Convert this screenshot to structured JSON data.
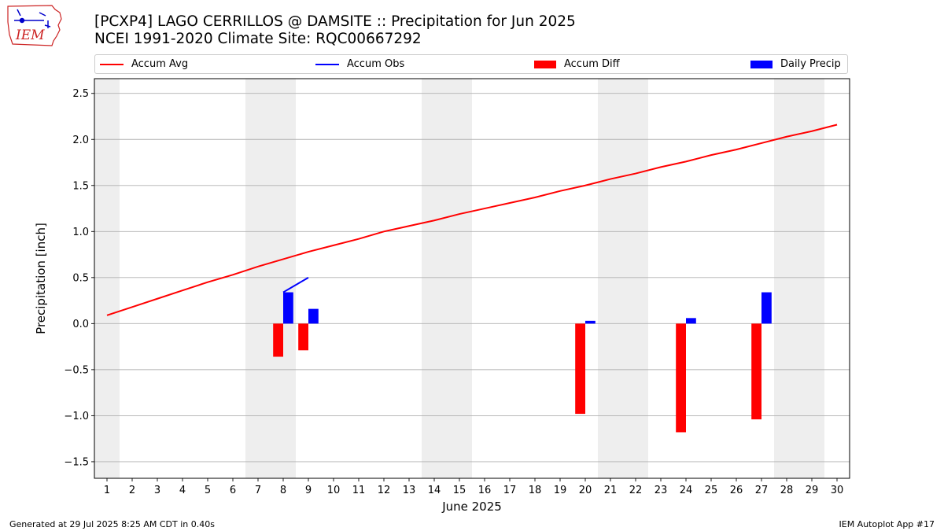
{
  "logo": {
    "text": "IEM"
  },
  "title": {
    "line1": "[PCXP4] LAGO CERRILLOS @ DAMSITE :: Precipitation for Jun 2025",
    "line2": "NCEI 1991-2020 Climate Site: RQC00667292"
  },
  "legend": [
    {
      "label": "Accum Avg",
      "kind": "line",
      "color": "#ff0000"
    },
    {
      "label": "Accum Obs",
      "kind": "line",
      "color": "#0000ff"
    },
    {
      "label": "Accum Diff",
      "kind": "box",
      "color": "#ff0000"
    },
    {
      "label": "Daily Precip",
      "kind": "box",
      "color": "#0000ff"
    }
  ],
  "footer": {
    "left": "Generated at 29 Jul 2025 8:25 AM CDT in 0.40s",
    "right": "IEM Autoplot App #17"
  },
  "chart_data": {
    "type": "bar",
    "title": "[PCXP4] LAGO CERRILLOS @ DAMSITE :: Precipitation for Jun 2025",
    "xlabel": "June 2025",
    "ylabel": "Precipitation [inch]",
    "x": [
      1,
      2,
      3,
      4,
      5,
      6,
      7,
      8,
      9,
      10,
      11,
      12,
      13,
      14,
      15,
      16,
      17,
      18,
      19,
      20,
      21,
      22,
      23,
      24,
      25,
      26,
      27,
      28,
      29,
      30
    ],
    "xlim": [
      0.5,
      30.5
    ],
    "ylim": [
      -1.68,
      2.66
    ],
    "yticks": [
      -1.5,
      -1.0,
      -0.5,
      0.0,
      0.5,
      1.0,
      1.5,
      2.0,
      2.5
    ],
    "ytick_labels": [
      "−1.5",
      "−1.0",
      "−0.5",
      "0.0",
      "0.5",
      "1.0",
      "1.5",
      "2.0",
      "2.5"
    ],
    "grid": "horizontal",
    "weekend_shading": [
      [
        0.5,
        1.5
      ],
      [
        6.5,
        8.5
      ],
      [
        13.5,
        15.5
      ],
      [
        20.5,
        22.5
      ],
      [
        27.5,
        29.5
      ]
    ],
    "series": [
      {
        "name": "Accum Avg",
        "type": "line",
        "color": "#ff0000",
        "x": [
          1,
          2,
          3,
          4,
          5,
          6,
          7,
          8,
          9,
          10,
          11,
          12,
          13,
          14,
          15,
          16,
          17,
          18,
          19,
          20,
          21,
          22,
          23,
          24,
          25,
          26,
          27,
          28,
          29,
          30
        ],
        "values": [
          0.09,
          0.18,
          0.27,
          0.36,
          0.45,
          0.53,
          0.62,
          0.7,
          0.78,
          0.85,
          0.92,
          1.0,
          1.06,
          1.12,
          1.19,
          1.25,
          1.31,
          1.37,
          1.44,
          1.5,
          1.57,
          1.63,
          1.7,
          1.76,
          1.83,
          1.89,
          1.96,
          2.03,
          2.09,
          2.16
        ]
      },
      {
        "name": "Accum Obs",
        "type": "line",
        "color": "#0000ff",
        "x": [
          8,
          9
        ],
        "values": [
          0.34,
          0.5
        ]
      },
      {
        "name": "Accum Diff",
        "type": "bar",
        "color": "#ff0000",
        "x": [
          8,
          9,
          20,
          24,
          27
        ],
        "values": [
          -0.36,
          -0.29,
          -0.98,
          -1.18,
          -1.04
        ]
      },
      {
        "name": "Daily Precip",
        "type": "bar",
        "color": "#0000ff",
        "x": [
          8,
          9,
          20,
          24,
          27
        ],
        "values": [
          0.34,
          0.16,
          0.03,
          0.06,
          0.34
        ]
      }
    ]
  }
}
